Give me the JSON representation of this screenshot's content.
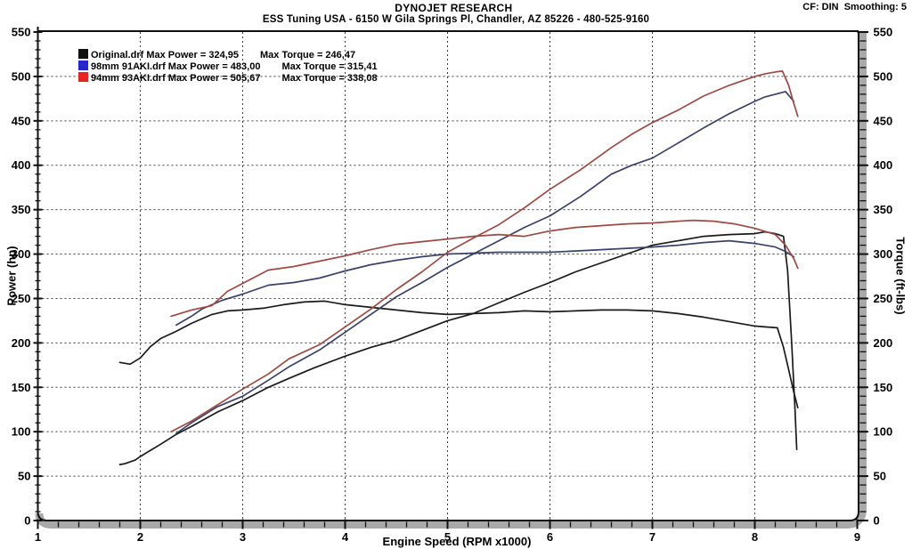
{
  "header": {
    "title": "DYNOJET RESEARCH",
    "subtitle": "ESS Tuning USA - 6150 W Gila Springs Pl, Chandler, AZ 85226 - 480-525-9160",
    "correction_info": "CF: DIN  Smoothing: 5"
  },
  "chart_data": {
    "type": "line",
    "xlabel": "Engine Speed (RPM x1000)",
    "ylabel_left": "Power (hp)",
    "ylabel_right": "Torque (ft-lbs)",
    "xlim": [
      1,
      9
    ],
    "ylim": [
      0,
      550
    ],
    "x_ticks": [
      1,
      2,
      3,
      4,
      5,
      6,
      7,
      8,
      9
    ],
    "y_ticks": [
      0,
      50,
      100,
      150,
      200,
      250,
      300,
      350,
      400,
      450,
      500,
      550
    ],
    "x_minor_step": 0.2,
    "y_minor_step": 10,
    "grid": "dashed",
    "legend_position": "top-left",
    "colors": {
      "axis_bar": "#a9a9a9",
      "frame": "#101010",
      "grid": "#3f3f3f",
      "original": "#1b1b1b",
      "blue_run": "#3a4269",
      "red_run": "#9d4944",
      "swatch_original": "#111111",
      "swatch_blue": "#2626cc",
      "swatch_red": "#e32424"
    },
    "legend": [
      {
        "id": "original",
        "file": "Original.drf",
        "max_power": "324,95",
        "max_torque": "246,47",
        "swatch": "#111111"
      },
      {
        "id": "98mm-91aki",
        "file": "98mm 91AKI.drf",
        "max_power": "483,00",
        "max_torque": "315,41",
        "swatch": "#2626cc"
      },
      {
        "id": "94mm-93aki",
        "file": "94mm 93AKI.drf",
        "max_power": "505,67",
        "max_torque": "338,08",
        "swatch": "#e32424"
      }
    ],
    "legend_power_prefix": "Max Power = ",
    "legend_torque_prefix": "Max Torque = ",
    "series": [
      {
        "name": "original-power",
        "color": "#1b1b1b",
        "points": [
          [
            1.8,
            63
          ],
          [
            1.85,
            64
          ],
          [
            1.95,
            68
          ],
          [
            2.0,
            72
          ],
          [
            2.1,
            79
          ],
          [
            2.2,
            86
          ],
          [
            2.35,
            97
          ],
          [
            2.5,
            106
          ],
          [
            2.75,
            122
          ],
          [
            3.0,
            135
          ],
          [
            3.25,
            150
          ],
          [
            3.45,
            160
          ],
          [
            3.7,
            172
          ],
          [
            4.0,
            185
          ],
          [
            4.25,
            195
          ],
          [
            4.5,
            203
          ],
          [
            4.75,
            214
          ],
          [
            5.0,
            225
          ],
          [
            5.25,
            233
          ],
          [
            5.5,
            245
          ],
          [
            5.75,
            257
          ],
          [
            6.0,
            268
          ],
          [
            6.25,
            280
          ],
          [
            6.5,
            290
          ],
          [
            6.75,
            300
          ],
          [
            7.0,
            310
          ],
          [
            7.25,
            315
          ],
          [
            7.5,
            320
          ],
          [
            7.75,
            322
          ],
          [
            8.0,
            323
          ],
          [
            8.1,
            325
          ],
          [
            8.2,
            323
          ],
          [
            8.28,
            320
          ],
          [
            8.32,
            282
          ],
          [
            8.36,
            200
          ],
          [
            8.39,
            130
          ],
          [
            8.41,
            80
          ]
        ]
      },
      {
        "name": "original-torque",
        "color": "#1b1b1b",
        "points": [
          [
            1.8,
            178
          ],
          [
            1.9,
            176
          ],
          [
            2.0,
            183
          ],
          [
            2.1,
            196
          ],
          [
            2.2,
            205
          ],
          [
            2.35,
            213
          ],
          [
            2.5,
            222
          ],
          [
            2.7,
            232
          ],
          [
            2.85,
            236
          ],
          [
            3.0,
            237
          ],
          [
            3.2,
            239
          ],
          [
            3.4,
            243
          ],
          [
            3.6,
            246
          ],
          [
            3.8,
            247
          ],
          [
            4.0,
            243
          ],
          [
            4.25,
            240
          ],
          [
            4.5,
            237
          ],
          [
            4.75,
            234
          ],
          [
            5.0,
            232
          ],
          [
            5.25,
            233
          ],
          [
            5.5,
            234
          ],
          [
            5.75,
            236
          ],
          [
            6.0,
            235
          ],
          [
            6.25,
            236
          ],
          [
            6.5,
            237
          ],
          [
            6.75,
            237
          ],
          [
            7.0,
            236
          ],
          [
            7.25,
            233
          ],
          [
            7.5,
            229
          ],
          [
            7.75,
            224
          ],
          [
            8.0,
            219
          ],
          [
            8.1,
            218
          ],
          [
            8.22,
            217
          ],
          [
            8.28,
            195
          ],
          [
            8.33,
            170
          ],
          [
            8.38,
            145
          ],
          [
            8.42,
            127
          ]
        ]
      },
      {
        "name": "98mm-91aki-power",
        "color": "#3a4269",
        "points": [
          [
            2.35,
            98
          ],
          [
            2.5,
            110
          ],
          [
            2.75,
            128
          ],
          [
            3.0,
            140
          ],
          [
            3.25,
            158
          ],
          [
            3.45,
            173
          ],
          [
            3.75,
            192
          ],
          [
            4.0,
            212
          ],
          [
            4.25,
            232
          ],
          [
            4.5,
            252
          ],
          [
            4.75,
            268
          ],
          [
            5.0,
            285
          ],
          [
            5.25,
            300
          ],
          [
            5.5,
            315
          ],
          [
            5.75,
            330
          ],
          [
            6.0,
            343
          ],
          [
            6.3,
            365
          ],
          [
            6.6,
            390
          ],
          [
            6.8,
            400
          ],
          [
            7.0,
            408
          ],
          [
            7.25,
            425
          ],
          [
            7.5,
            442
          ],
          [
            7.75,
            458
          ],
          [
            8.0,
            472
          ],
          [
            8.1,
            477
          ],
          [
            8.2,
            480
          ],
          [
            8.3,
            483
          ],
          [
            8.38,
            472
          ]
        ]
      },
      {
        "name": "98mm-91aki-torque",
        "color": "#3a4269",
        "points": [
          [
            2.35,
            220
          ],
          [
            2.5,
            230
          ],
          [
            2.6,
            238
          ],
          [
            2.8,
            248
          ],
          [
            3.0,
            255
          ],
          [
            3.25,
            265
          ],
          [
            3.5,
            268
          ],
          [
            3.75,
            273
          ],
          [
            4.0,
            281
          ],
          [
            4.25,
            288
          ],
          [
            4.5,
            293
          ],
          [
            4.75,
            297
          ],
          [
            5.0,
            300
          ],
          [
            5.25,
            301
          ],
          [
            5.5,
            302
          ],
          [
            6.0,
            302
          ],
          [
            6.5,
            305
          ],
          [
            7.0,
            308
          ],
          [
            7.25,
            310
          ],
          [
            7.5,
            313
          ],
          [
            7.75,
            315
          ],
          [
            8.0,
            312
          ],
          [
            8.2,
            308
          ],
          [
            8.3,
            303
          ],
          [
            8.38,
            297
          ]
        ]
      },
      {
        "name": "94mm-93aki-power",
        "color": "#9d4944",
        "points": [
          [
            2.3,
            100
          ],
          [
            2.5,
            112
          ],
          [
            2.75,
            130
          ],
          [
            3.0,
            148
          ],
          [
            3.25,
            165
          ],
          [
            3.45,
            182
          ],
          [
            3.75,
            198
          ],
          [
            4.0,
            218
          ],
          [
            4.25,
            238
          ],
          [
            4.5,
            260
          ],
          [
            4.75,
            280
          ],
          [
            5.0,
            302
          ],
          [
            5.25,
            318
          ],
          [
            5.5,
            333
          ],
          [
            5.75,
            352
          ],
          [
            6.0,
            373
          ],
          [
            6.3,
            395
          ],
          [
            6.6,
            420
          ],
          [
            6.8,
            435
          ],
          [
            7.0,
            448
          ],
          [
            7.25,
            462
          ],
          [
            7.5,
            478
          ],
          [
            7.75,
            490
          ],
          [
            8.0,
            500
          ],
          [
            8.1,
            503
          ],
          [
            8.2,
            505
          ],
          [
            8.27,
            506
          ],
          [
            8.33,
            490
          ],
          [
            8.38,
            470
          ],
          [
            8.42,
            455
          ]
        ]
      },
      {
        "name": "94mm-93aki-torque",
        "color": "#9d4944",
        "points": [
          [
            2.3,
            230
          ],
          [
            2.5,
            237
          ],
          [
            2.7,
            242
          ],
          [
            2.85,
            258
          ],
          [
            3.0,
            267
          ],
          [
            3.25,
            282
          ],
          [
            3.5,
            286
          ],
          [
            3.75,
            292
          ],
          [
            4.0,
            298
          ],
          [
            4.25,
            305
          ],
          [
            4.5,
            311
          ],
          [
            4.75,
            314
          ],
          [
            5.0,
            317
          ],
          [
            5.25,
            320
          ],
          [
            5.5,
            322
          ],
          [
            5.75,
            320
          ],
          [
            6.0,
            326
          ],
          [
            6.25,
            330
          ],
          [
            6.5,
            332
          ],
          [
            6.75,
            334
          ],
          [
            7.0,
            335
          ],
          [
            7.25,
            337
          ],
          [
            7.4,
            338
          ],
          [
            7.6,
            337
          ],
          [
            7.8,
            334
          ],
          [
            8.0,
            329
          ],
          [
            8.2,
            322
          ],
          [
            8.3,
            310
          ],
          [
            8.38,
            295
          ],
          [
            8.42,
            284
          ]
        ]
      }
    ]
  }
}
